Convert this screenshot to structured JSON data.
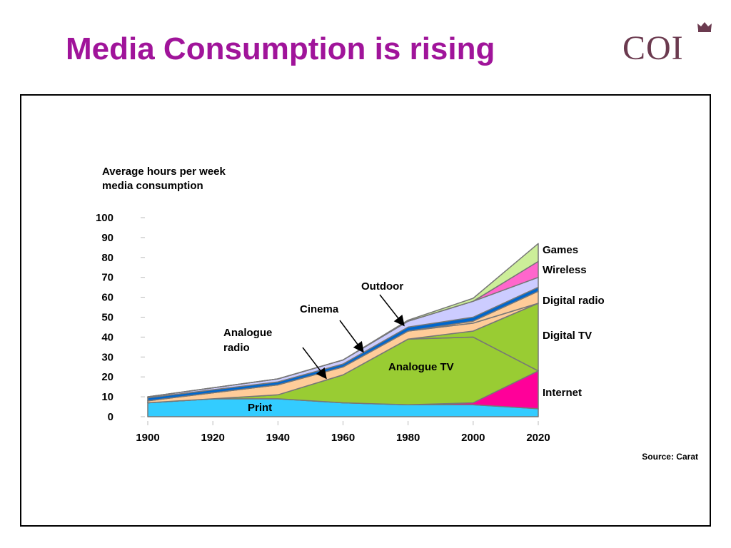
{
  "slide": {
    "title": "Media Consumption is rising",
    "logo_text": "COI",
    "source": "Source: Carat"
  },
  "colors": {
    "title": "#a0149a",
    "print": "#33ccff",
    "internet": "#ff0099",
    "analogue_tv": "#99cc33",
    "digital_tv": "#99cc33",
    "analogue_radio": "#ffcc99",
    "digital_radio": "#ffcc99",
    "cinema": "#0066cc",
    "outdoor": "#ccccff",
    "wireless": "#ff66cc",
    "games": "#ccee99"
  },
  "chart_data": {
    "type": "area",
    "stacked": true,
    "ylabel": "Average hours per week media consumption",
    "ylabel_lines": [
      "Average hours per week",
      "media consumption"
    ],
    "x": [
      1900,
      1920,
      1940,
      1960,
      1980,
      2000,
      2020
    ],
    "xticks": [
      "1900",
      "1920",
      "1940",
      "1960",
      "1980",
      "2000",
      "2020"
    ],
    "yticks": [
      "0",
      "10",
      "20",
      "30",
      "40",
      "50",
      "60",
      "70",
      "80",
      "90",
      "100"
    ],
    "ylim": [
      0,
      100
    ],
    "series": [
      {
        "name": "Print",
        "values": [
          7,
          9,
          9,
          7,
          6,
          6,
          4
        ]
      },
      {
        "name": "Internet",
        "values": [
          0,
          0,
          0,
          0,
          0,
          1,
          19
        ]
      },
      {
        "name": "Analogue TV",
        "values": [
          0,
          0,
          2,
          14,
          33,
          33,
          0
        ]
      },
      {
        "name": "Digital TV",
        "values": [
          0,
          0,
          0,
          0,
          0,
          3,
          34
        ]
      },
      {
        "name": "Analogue radio",
        "values": [
          1,
          3,
          5,
          4,
          4,
          4,
          0
        ]
      },
      {
        "name": "Digital radio",
        "values": [
          0,
          0,
          0,
          0,
          0,
          1,
          6
        ]
      },
      {
        "name": "Cinema",
        "values": [
          1.5,
          1.5,
          1.5,
          1.5,
          2,
          2,
          2
        ]
      },
      {
        "name": "Outdoor",
        "values": [
          0.5,
          1,
          1.5,
          2,
          3,
          8,
          5
        ]
      },
      {
        "name": "Wireless",
        "values": [
          0,
          0,
          0,
          0,
          0,
          0,
          8
        ]
      },
      {
        "name": "Games",
        "values": [
          0,
          0,
          0,
          0,
          0.5,
          1.5,
          9
        ]
      }
    ],
    "annotations": {
      "games": "Games",
      "wireless": "Wireless",
      "outdoor": "Outdoor",
      "digital_radio": "Digital radio",
      "cinema": "Cinema",
      "analogue_radio": "Analogue radio",
      "analogue_radio_lines": [
        "Analogue",
        "radio"
      ],
      "digital_tv": "Digital TV",
      "analogue_tv": "Analogue TV",
      "internet": "Internet",
      "print": "Print"
    }
  }
}
